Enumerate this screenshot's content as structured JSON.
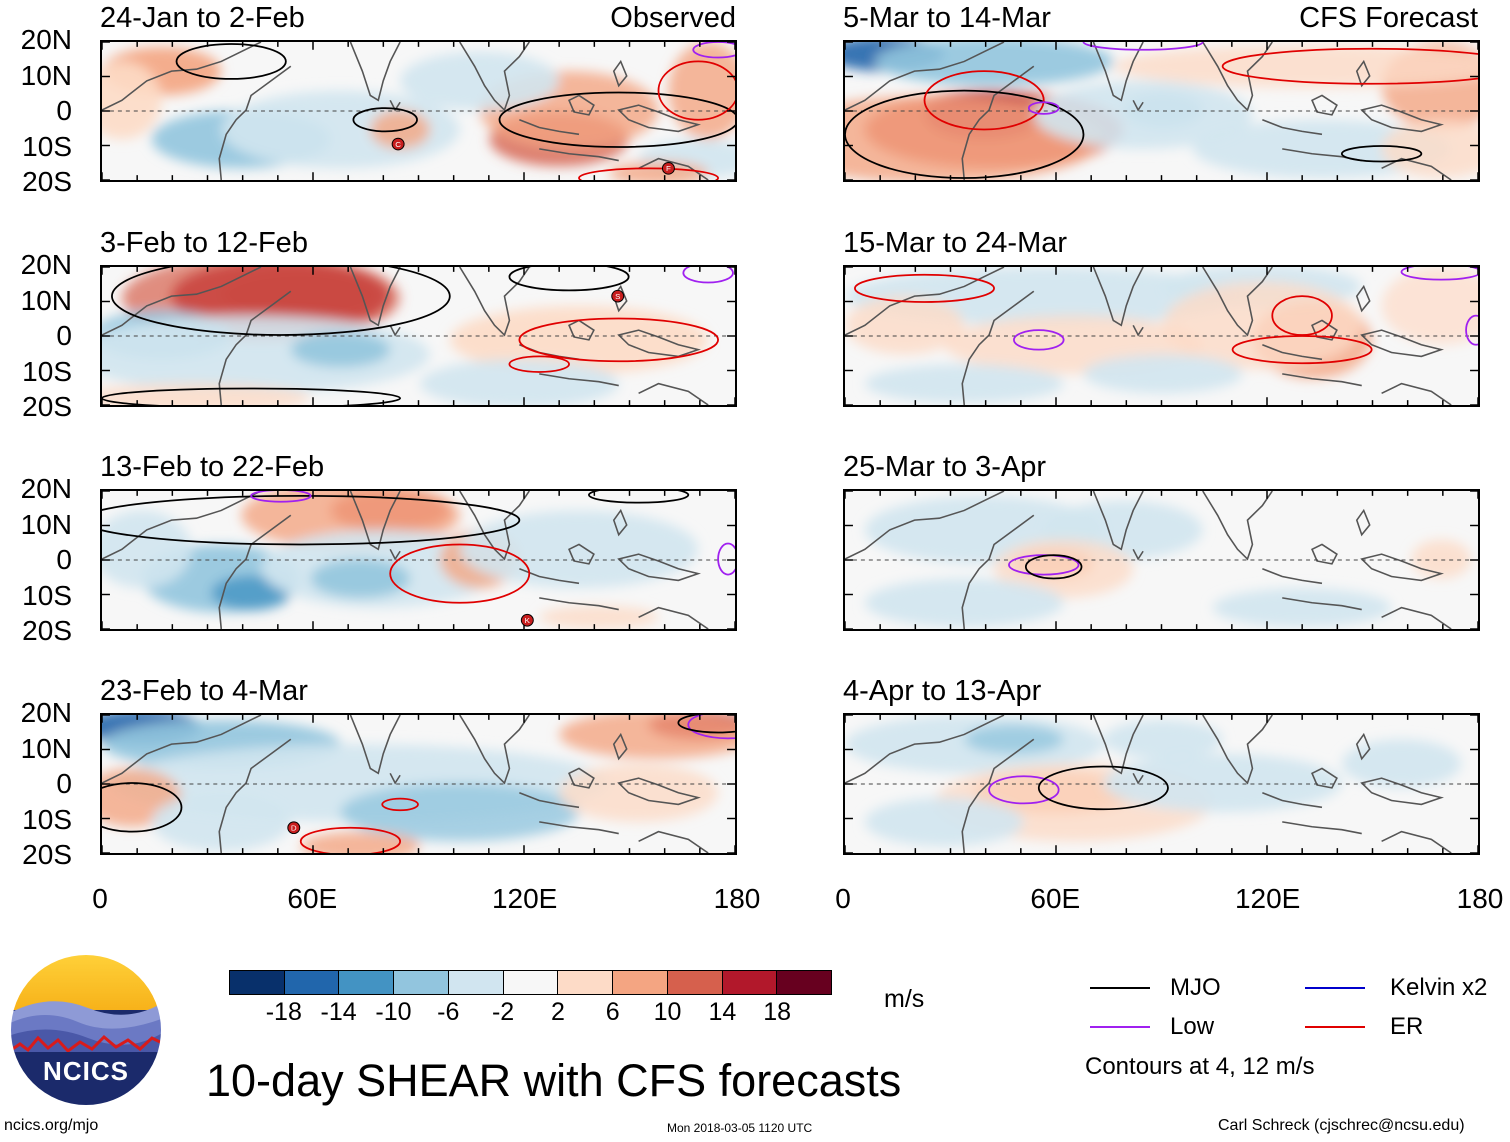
{
  "panels": [
    {
      "title": "24-Jan to 2-Feb",
      "tag": "Observed",
      "variant": 0
    },
    {
      "title": "3-Feb to 12-Feb",
      "tag": "",
      "variant": 1
    },
    {
      "title": "13-Feb to 22-Feb",
      "tag": "",
      "variant": 2
    },
    {
      "title": "23-Feb to 4-Mar",
      "tag": "",
      "variant": 3
    },
    {
      "title": "5-Mar to 14-Mar",
      "tag": "CFS Forecast",
      "variant": 4
    },
    {
      "title": "15-Mar to 24-Mar",
      "tag": "",
      "variant": 5
    },
    {
      "title": "25-Mar to 3-Apr",
      "tag": "",
      "variant": 6
    },
    {
      "title": "4-Apr to 13-Apr",
      "tag": "",
      "variant": 7
    }
  ],
  "lat_labels": [
    "20N",
    "10N",
    "0",
    "10S",
    "20S"
  ],
  "lon_labels": [
    "0",
    "60E",
    "120E",
    "180"
  ],
  "colorbar": {
    "colors": [
      "#08306b",
      "#2166ac",
      "#4393c3",
      "#92c5de",
      "#d1e5f0",
      "#f7f7f7",
      "#fddbc7",
      "#f4a582",
      "#d6604d",
      "#b2182b",
      "#67001f"
    ],
    "labels": [
      "-18",
      "-14",
      "-10",
      "-6",
      "-2",
      "2",
      "6",
      "10",
      "14",
      "18"
    ],
    "units": "m/s"
  },
  "main_title": "10-day SHEAR with CFS forecasts",
  "legend": {
    "items": [
      {
        "label": "MJO",
        "color": "#000000"
      },
      {
        "label": "Kelvin x2",
        "color": "#0000cc"
      },
      {
        "label": "Low",
        "color": "#a020f0"
      },
      {
        "label": "ER",
        "color": "#e00000"
      }
    ],
    "contours": "Contours at 4, 12 m/s"
  },
  "logo_text": "NCICS",
  "footer": {
    "url": "ncics.org/mjo",
    "timestamp": "Mon 2018-03-05 1120 UTC",
    "author": "Carl Schreck (cjschrec@ncsu.edu)"
  },
  "storm_markers": [
    {
      "letter": "C",
      "panel": 0
    },
    {
      "letter": "F",
      "panel": 0
    },
    {
      "letter": "S",
      "panel": 1
    },
    {
      "letter": "K",
      "panel": 2
    },
    {
      "letter": "D",
      "panel": 3
    }
  ]
}
